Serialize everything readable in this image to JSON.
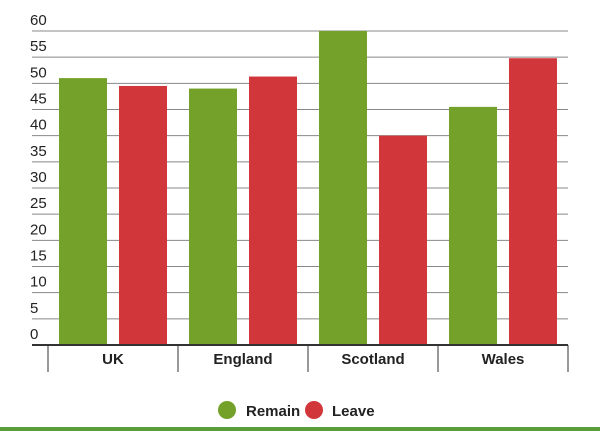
{
  "chart_data": {
    "type": "bar",
    "categories": [
      "UK",
      "England",
      "Scotland",
      "Wales"
    ],
    "series": [
      {
        "name": "Remain",
        "color": "#74a12a",
        "values": [
          51,
          49,
          60,
          45.5
        ]
      },
      {
        "name": "Leave",
        "color": "#d1363a",
        "values": [
          49.5,
          51.3,
          40,
          54.8
        ]
      }
    ],
    "ylim": [
      0,
      60
    ],
    "yticks": [
      "0",
      "5",
      "10",
      "15",
      "20",
      "25",
      "30",
      "35",
      "40",
      "45",
      "50",
      "55",
      "60"
    ],
    "grid": true,
    "legend_position": "bottom-center",
    "colors": {
      "grid": "#888888",
      "axis": "#333333",
      "bottom_rule": "#5a9e3a"
    }
  }
}
